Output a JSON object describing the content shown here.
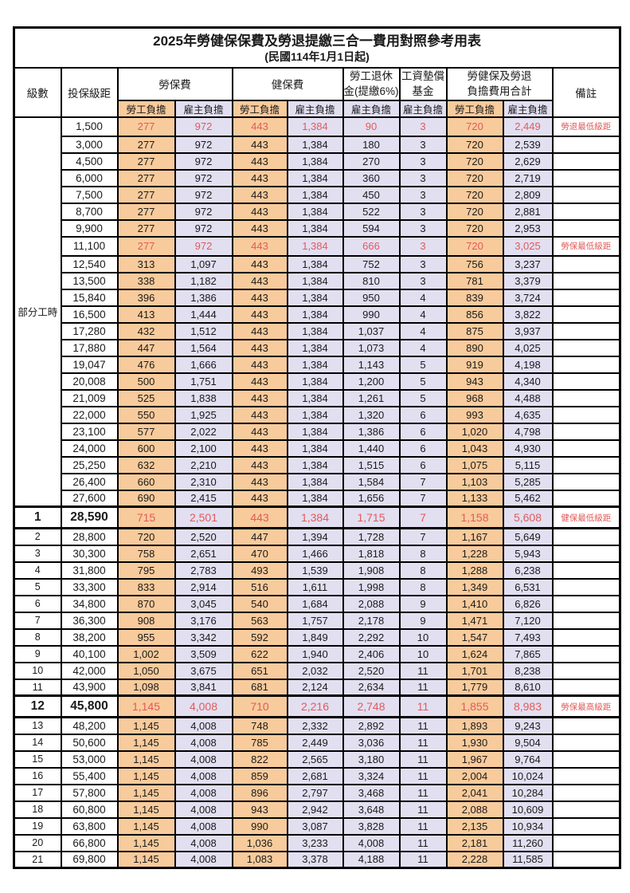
{
  "title": "2025年勞健保保費及勞退提繳三合一費用對照參考用表",
  "subtitle": "(民國114年1月1日起)",
  "colors": {
    "employee_bg": "#F8CB9C",
    "employer_bg": "#E2DFF1",
    "highlight_text": "#E25A5A"
  },
  "header": {
    "level": "級數",
    "bracket": "投保級距",
    "labor_ins": "勞保費",
    "health_ins": "健保費",
    "pension_line1": "勞工退休",
    "pension_line2": "金(提繳6%)",
    "wage_fund_line1": "工資墊償",
    "wage_fund_line2": "基金",
    "total_line1": "勞健保及勞退",
    "total_line2": "負擔費用合計",
    "note": "備註",
    "employee": "勞工負擔",
    "employer": "雇主負擔"
  },
  "rows": [
    {
      "level": "部分工時",
      "rowspan": 23,
      "bracket": "1,500",
      "values": [
        "277",
        "972",
        "443",
        "1,384",
        "90",
        "3",
        "720",
        "2,449"
      ],
      "note": "勞退最低級距",
      "red": true,
      "emph": false
    },
    {
      "level": null,
      "bracket": "3,000",
      "values": [
        "277",
        "972",
        "443",
        "1,384",
        "180",
        "3",
        "720",
        "2,539"
      ],
      "note": "",
      "red": false,
      "emph": false
    },
    {
      "level": null,
      "bracket": "4,500",
      "values": [
        "277",
        "972",
        "443",
        "1,384",
        "270",
        "3",
        "720",
        "2,629"
      ],
      "note": "",
      "red": false,
      "emph": false
    },
    {
      "level": null,
      "bracket": "6,000",
      "values": [
        "277",
        "972",
        "443",
        "1,384",
        "360",
        "3",
        "720",
        "2,719"
      ],
      "note": "",
      "red": false,
      "emph": false
    },
    {
      "level": null,
      "bracket": "7,500",
      "values": [
        "277",
        "972",
        "443",
        "1,384",
        "450",
        "3",
        "720",
        "2,809"
      ],
      "note": "",
      "red": false,
      "emph": false
    },
    {
      "level": null,
      "bracket": "8,700",
      "values": [
        "277",
        "972",
        "443",
        "1,384",
        "522",
        "3",
        "720",
        "2,881"
      ],
      "note": "",
      "red": false,
      "emph": false
    },
    {
      "level": null,
      "bracket": "9,900",
      "values": [
        "277",
        "972",
        "443",
        "1,384",
        "594",
        "3",
        "720",
        "2,953"
      ],
      "note": "",
      "red": false,
      "emph": false
    },
    {
      "level": null,
      "bracket": "11,100",
      "values": [
        "277",
        "972",
        "443",
        "1,384",
        "666",
        "3",
        "720",
        "3,025"
      ],
      "note": "勞保最低級距",
      "red": true,
      "emph": false
    },
    {
      "level": null,
      "bracket": "12,540",
      "values": [
        "313",
        "1,097",
        "443",
        "1,384",
        "752",
        "3",
        "756",
        "3,237"
      ],
      "note": "",
      "red": false,
      "emph": false
    },
    {
      "level": null,
      "bracket": "13,500",
      "values": [
        "338",
        "1,182",
        "443",
        "1,384",
        "810",
        "3",
        "781",
        "3,379"
      ],
      "note": "",
      "red": false,
      "emph": false
    },
    {
      "level": null,
      "bracket": "15,840",
      "values": [
        "396",
        "1,386",
        "443",
        "1,384",
        "950",
        "4",
        "839",
        "3,724"
      ],
      "note": "",
      "red": false,
      "emph": false
    },
    {
      "level": null,
      "bracket": "16,500",
      "values": [
        "413",
        "1,444",
        "443",
        "1,384",
        "990",
        "4",
        "856",
        "3,822"
      ],
      "note": "",
      "red": false,
      "emph": false
    },
    {
      "level": null,
      "bracket": "17,280",
      "values": [
        "432",
        "1,512",
        "443",
        "1,384",
        "1,037",
        "4",
        "875",
        "3,937"
      ],
      "note": "",
      "red": false,
      "emph": false
    },
    {
      "level": null,
      "bracket": "17,880",
      "values": [
        "447",
        "1,564",
        "443",
        "1,384",
        "1,073",
        "4",
        "890",
        "4,025"
      ],
      "note": "",
      "red": false,
      "emph": false
    },
    {
      "level": null,
      "bracket": "19,047",
      "values": [
        "476",
        "1,666",
        "443",
        "1,384",
        "1,143",
        "5",
        "919",
        "4,198"
      ],
      "note": "",
      "red": false,
      "emph": false
    },
    {
      "level": null,
      "bracket": "20,008",
      "values": [
        "500",
        "1,751",
        "443",
        "1,384",
        "1,200",
        "5",
        "943",
        "4,340"
      ],
      "note": "",
      "red": false,
      "emph": false
    },
    {
      "level": null,
      "bracket": "21,009",
      "values": [
        "525",
        "1,838",
        "443",
        "1,384",
        "1,261",
        "5",
        "968",
        "4,488"
      ],
      "note": "",
      "red": false,
      "emph": false
    },
    {
      "level": null,
      "bracket": "22,000",
      "values": [
        "550",
        "1,925",
        "443",
        "1,384",
        "1,320",
        "6",
        "993",
        "4,635"
      ],
      "note": "",
      "red": false,
      "emph": false
    },
    {
      "level": null,
      "bracket": "23,100",
      "values": [
        "577",
        "2,022",
        "443",
        "1,384",
        "1,386",
        "6",
        "1,020",
        "4,798"
      ],
      "note": "",
      "red": false,
      "emph": false
    },
    {
      "level": null,
      "bracket": "24,000",
      "values": [
        "600",
        "2,100",
        "443",
        "1,384",
        "1,440",
        "6",
        "1,043",
        "4,930"
      ],
      "note": "",
      "red": false,
      "emph": false
    },
    {
      "level": null,
      "bracket": "25,250",
      "values": [
        "632",
        "2,210",
        "443",
        "1,384",
        "1,515",
        "6",
        "1,075",
        "5,115"
      ],
      "note": "",
      "red": false,
      "emph": false
    },
    {
      "level": null,
      "bracket": "26,400",
      "values": [
        "660",
        "2,310",
        "443",
        "1,384",
        "1,584",
        "7",
        "1,103",
        "5,285"
      ],
      "note": "",
      "red": false,
      "emph": false
    },
    {
      "level": null,
      "bracket": "27,600",
      "values": [
        "690",
        "2,415",
        "443",
        "1,384",
        "1,656",
        "7",
        "1,133",
        "5,462"
      ],
      "note": "",
      "red": false,
      "emph": false
    },
    {
      "level": "1",
      "bracket": "28,590",
      "values": [
        "715",
        "2,501",
        "443",
        "1,384",
        "1,715",
        "7",
        "1,158",
        "5,608"
      ],
      "note": "健保最低級距",
      "red": true,
      "emph": true
    },
    {
      "level": "2",
      "bracket": "28,800",
      "values": [
        "720",
        "2,520",
        "447",
        "1,394",
        "1,728",
        "7",
        "1,167",
        "5,649"
      ],
      "note": "",
      "red": false,
      "emph": false
    },
    {
      "level": "3",
      "bracket": "30,300",
      "values": [
        "758",
        "2,651",
        "470",
        "1,466",
        "1,818",
        "8",
        "1,228",
        "5,943"
      ],
      "note": "",
      "red": false,
      "emph": false
    },
    {
      "level": "4",
      "bracket": "31,800",
      "values": [
        "795",
        "2,783",
        "493",
        "1,539",
        "1,908",
        "8",
        "1,288",
        "6,238"
      ],
      "note": "",
      "red": false,
      "emph": false
    },
    {
      "level": "5",
      "bracket": "33,300",
      "values": [
        "833",
        "2,914",
        "516",
        "1,611",
        "1,998",
        "8",
        "1,349",
        "6,531"
      ],
      "note": "",
      "red": false,
      "emph": false
    },
    {
      "level": "6",
      "bracket": "34,800",
      "values": [
        "870",
        "3,045",
        "540",
        "1,684",
        "2,088",
        "9",
        "1,410",
        "6,826"
      ],
      "note": "",
      "red": false,
      "emph": false
    },
    {
      "level": "7",
      "bracket": "36,300",
      "values": [
        "908",
        "3,176",
        "563",
        "1,757",
        "2,178",
        "9",
        "1,471",
        "7,120"
      ],
      "note": "",
      "red": false,
      "emph": false
    },
    {
      "level": "8",
      "bracket": "38,200",
      "values": [
        "955",
        "3,342",
        "592",
        "1,849",
        "2,292",
        "10",
        "1,547",
        "7,493"
      ],
      "note": "",
      "red": false,
      "emph": false
    },
    {
      "level": "9",
      "bracket": "40,100",
      "values": [
        "1,002",
        "3,509",
        "622",
        "1,940",
        "2,406",
        "10",
        "1,624",
        "7,865"
      ],
      "note": "",
      "red": false,
      "emph": false
    },
    {
      "level": "10",
      "bracket": "42,000",
      "values": [
        "1,050",
        "3,675",
        "651",
        "2,032",
        "2,520",
        "11",
        "1,701",
        "8,238"
      ],
      "note": "",
      "red": false,
      "emph": false
    },
    {
      "level": "11",
      "bracket": "43,900",
      "values": [
        "1,098",
        "3,841",
        "681",
        "2,124",
        "2,634",
        "11",
        "1,779",
        "8,610"
      ],
      "note": "",
      "red": false,
      "emph": false
    },
    {
      "level": "12",
      "bracket": "45,800",
      "values": [
        "1,145",
        "4,008",
        "710",
        "2,216",
        "2,748",
        "11",
        "1,855",
        "8,983"
      ],
      "note": "勞保最高級距",
      "red": true,
      "emph": true
    },
    {
      "level": "13",
      "bracket": "48,200",
      "values": [
        "1,145",
        "4,008",
        "748",
        "2,332",
        "2,892",
        "11",
        "1,893",
        "9,243"
      ],
      "note": "",
      "red": false,
      "emph": false
    },
    {
      "level": "14",
      "bracket": "50,600",
      "values": [
        "1,145",
        "4,008",
        "785",
        "2,449",
        "3,036",
        "11",
        "1,930",
        "9,504"
      ],
      "note": "",
      "red": false,
      "emph": false
    },
    {
      "level": "15",
      "bracket": "53,000",
      "values": [
        "1,145",
        "4,008",
        "822",
        "2,565",
        "3,180",
        "11",
        "1,967",
        "9,764"
      ],
      "note": "",
      "red": false,
      "emph": false
    },
    {
      "level": "16",
      "bracket": "55,400",
      "values": [
        "1,145",
        "4,008",
        "859",
        "2,681",
        "3,324",
        "11",
        "2,004",
        "10,024"
      ],
      "note": "",
      "red": false,
      "emph": false
    },
    {
      "level": "17",
      "bracket": "57,800",
      "values": [
        "1,145",
        "4,008",
        "896",
        "2,797",
        "3,468",
        "11",
        "2,041",
        "10,284"
      ],
      "note": "",
      "red": false,
      "emph": false
    },
    {
      "level": "18",
      "bracket": "60,800",
      "values": [
        "1,145",
        "4,008",
        "943",
        "2,942",
        "3,648",
        "11",
        "2,088",
        "10,609"
      ],
      "note": "",
      "red": false,
      "emph": false
    },
    {
      "level": "19",
      "bracket": "63,800",
      "values": [
        "1,145",
        "4,008",
        "990",
        "3,087",
        "3,828",
        "11",
        "2,135",
        "10,934"
      ],
      "note": "",
      "red": false,
      "emph": false
    },
    {
      "level": "20",
      "bracket": "66,800",
      "values": [
        "1,145",
        "4,008",
        "1,036",
        "3,233",
        "4,008",
        "11",
        "2,181",
        "11,260"
      ],
      "note": "",
      "red": false,
      "emph": false
    },
    {
      "level": "21",
      "bracket": "69,800",
      "values": [
        "1,145",
        "4,008",
        "1,083",
        "3,378",
        "4,188",
        "11",
        "2,228",
        "11,585"
      ],
      "note": "",
      "red": false,
      "emph": false
    }
  ]
}
